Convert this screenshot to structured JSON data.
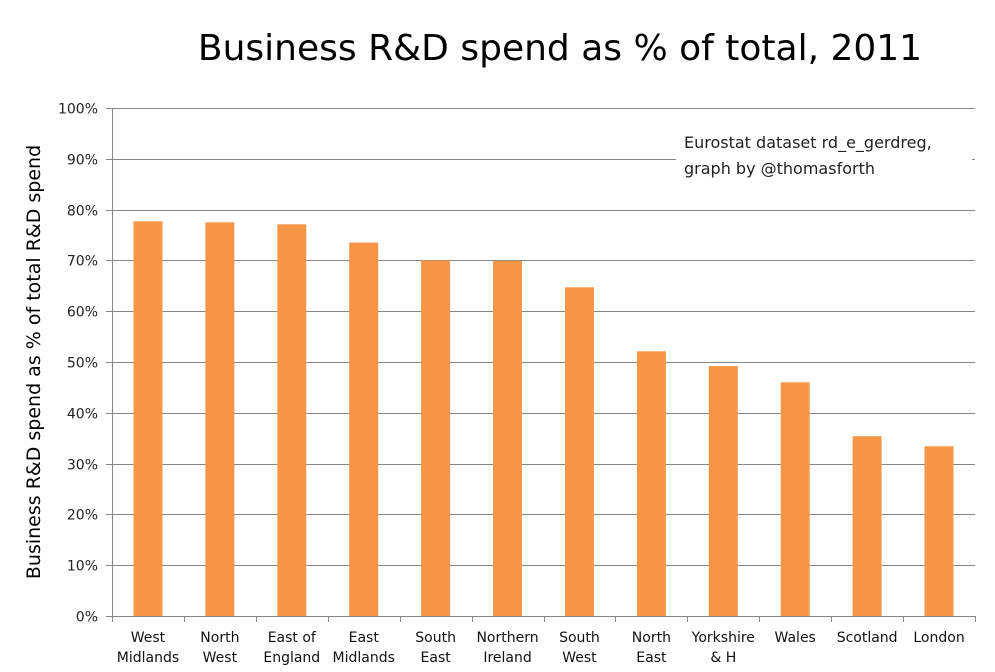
{
  "chart_data": {
    "type": "bar",
    "title": "Business R&D spend as % of total, 2011",
    "xlabel": "",
    "ylabel": "Business R&D spend as % of total R&D spend",
    "annotation": [
      "Eurostat dataset rd_e_gerdreg,",
      "graph by @thomasforth"
    ],
    "categories": [
      [
        "West",
        "Midlands"
      ],
      [
        "North",
        "West"
      ],
      [
        "East of",
        "England"
      ],
      [
        "East",
        "Midlands"
      ],
      [
        "South",
        "East"
      ],
      [
        "Northern",
        "Ireland"
      ],
      [
        "South",
        "West"
      ],
      [
        "North",
        "East"
      ],
      [
        "Yorkshire",
        "& H"
      ],
      [
        "Wales"
      ],
      [
        "Scotland"
      ],
      [
        "London"
      ]
    ],
    "values": [
      77.7,
      77.5,
      77.1,
      73.5,
      70.0,
      69.9,
      64.7,
      52.1,
      49.2,
      46.0,
      35.4,
      33.4
    ],
    "ylim": [
      0,
      100
    ],
    "yticks": [
      0,
      10,
      20,
      30,
      40,
      50,
      60,
      70,
      80,
      90,
      100
    ],
    "ytick_labels": [
      "0%",
      "10%",
      "20%",
      "30%",
      "40%",
      "50%",
      "60%",
      "70%",
      "80%",
      "90%",
      "100%"
    ],
    "grid": true,
    "legend": "none",
    "colors": {
      "bar": "#F79646",
      "grid": "#868686",
      "axis": "#868686",
      "text": "#000000"
    }
  }
}
